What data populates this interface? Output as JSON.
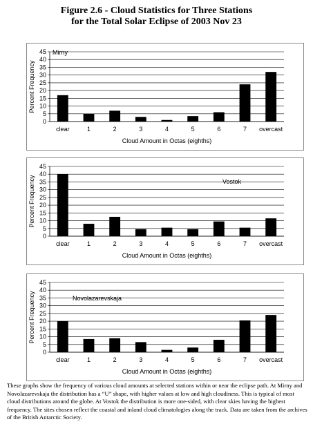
{
  "title_line1": "Figure 2.6 - Cloud Statistics for Three Stations",
  "title_line2": "for the Total Solar Eclipse of 2003 Nov 23",
  "caption": "These graphs show the frequency of various cloud amounts at selected stations within or near the eclipse path. At Mirny and Novolazarevskaja the distribution has a “U” shape, with higher values at low and high cloudiness. This is typical of most cloud distributions around the globe. At Vostok the distribution is more one-sided, with clear skies having the highest frequency. The sites chosen reflect the coastal and inland cloud climatologies along the track. Data are taken from the archives of the British Antarctic Society.",
  "chart_data": [
    {
      "type": "bar",
      "station": "Mirny",
      "categories": [
        "clear",
        "1",
        "2",
        "3",
        "4",
        "5",
        "6",
        "7",
        "overcast"
      ],
      "values": [
        17,
        5,
        7,
        3,
        1,
        3.5,
        6,
        24,
        32
      ],
      "xlabel": "Cloud Amount in Octas (eighths)",
      "ylabel": "Percent Frequency",
      "ylim": [
        0,
        45
      ],
      "yticks": [
        0,
        5,
        10,
        15,
        20,
        25,
        30,
        35,
        40,
        45
      ],
      "grid": true,
      "bar_color": "#000000"
    },
    {
      "type": "bar",
      "station": "Vostok",
      "categories": [
        "clear",
        "1",
        "2",
        "3",
        "4",
        "5",
        "6",
        "7",
        "overcast"
      ],
      "values": [
        40,
        8,
        12.5,
        4.5,
        5.5,
        4.5,
        9.5,
        5.5,
        11.5
      ],
      "xlabel": "Cloud Amount in Octas (eighths)",
      "ylabel": "Percent Frequency",
      "ylim": [
        0,
        45
      ],
      "yticks": [
        0,
        5,
        10,
        15,
        20,
        25,
        30,
        35,
        40,
        45
      ],
      "grid": true,
      "bar_color": "#000000"
    },
    {
      "type": "bar",
      "station": "Novolazarevskaja",
      "categories": [
        "clear",
        "1",
        "2",
        "3",
        "4",
        "5",
        "6",
        "7",
        "overcast"
      ],
      "values": [
        20,
        8.5,
        9,
        6.5,
        1.5,
        3,
        8,
        20.5,
        24
      ],
      "xlabel": "Cloud Amount in Octas (eighths)",
      "ylabel": "Percent Frequency",
      "ylim": [
        0,
        45
      ],
      "yticks": [
        0,
        5,
        10,
        15,
        20,
        25,
        30,
        35,
        40,
        45
      ],
      "grid": true,
      "bar_color": "#000000"
    }
  ]
}
